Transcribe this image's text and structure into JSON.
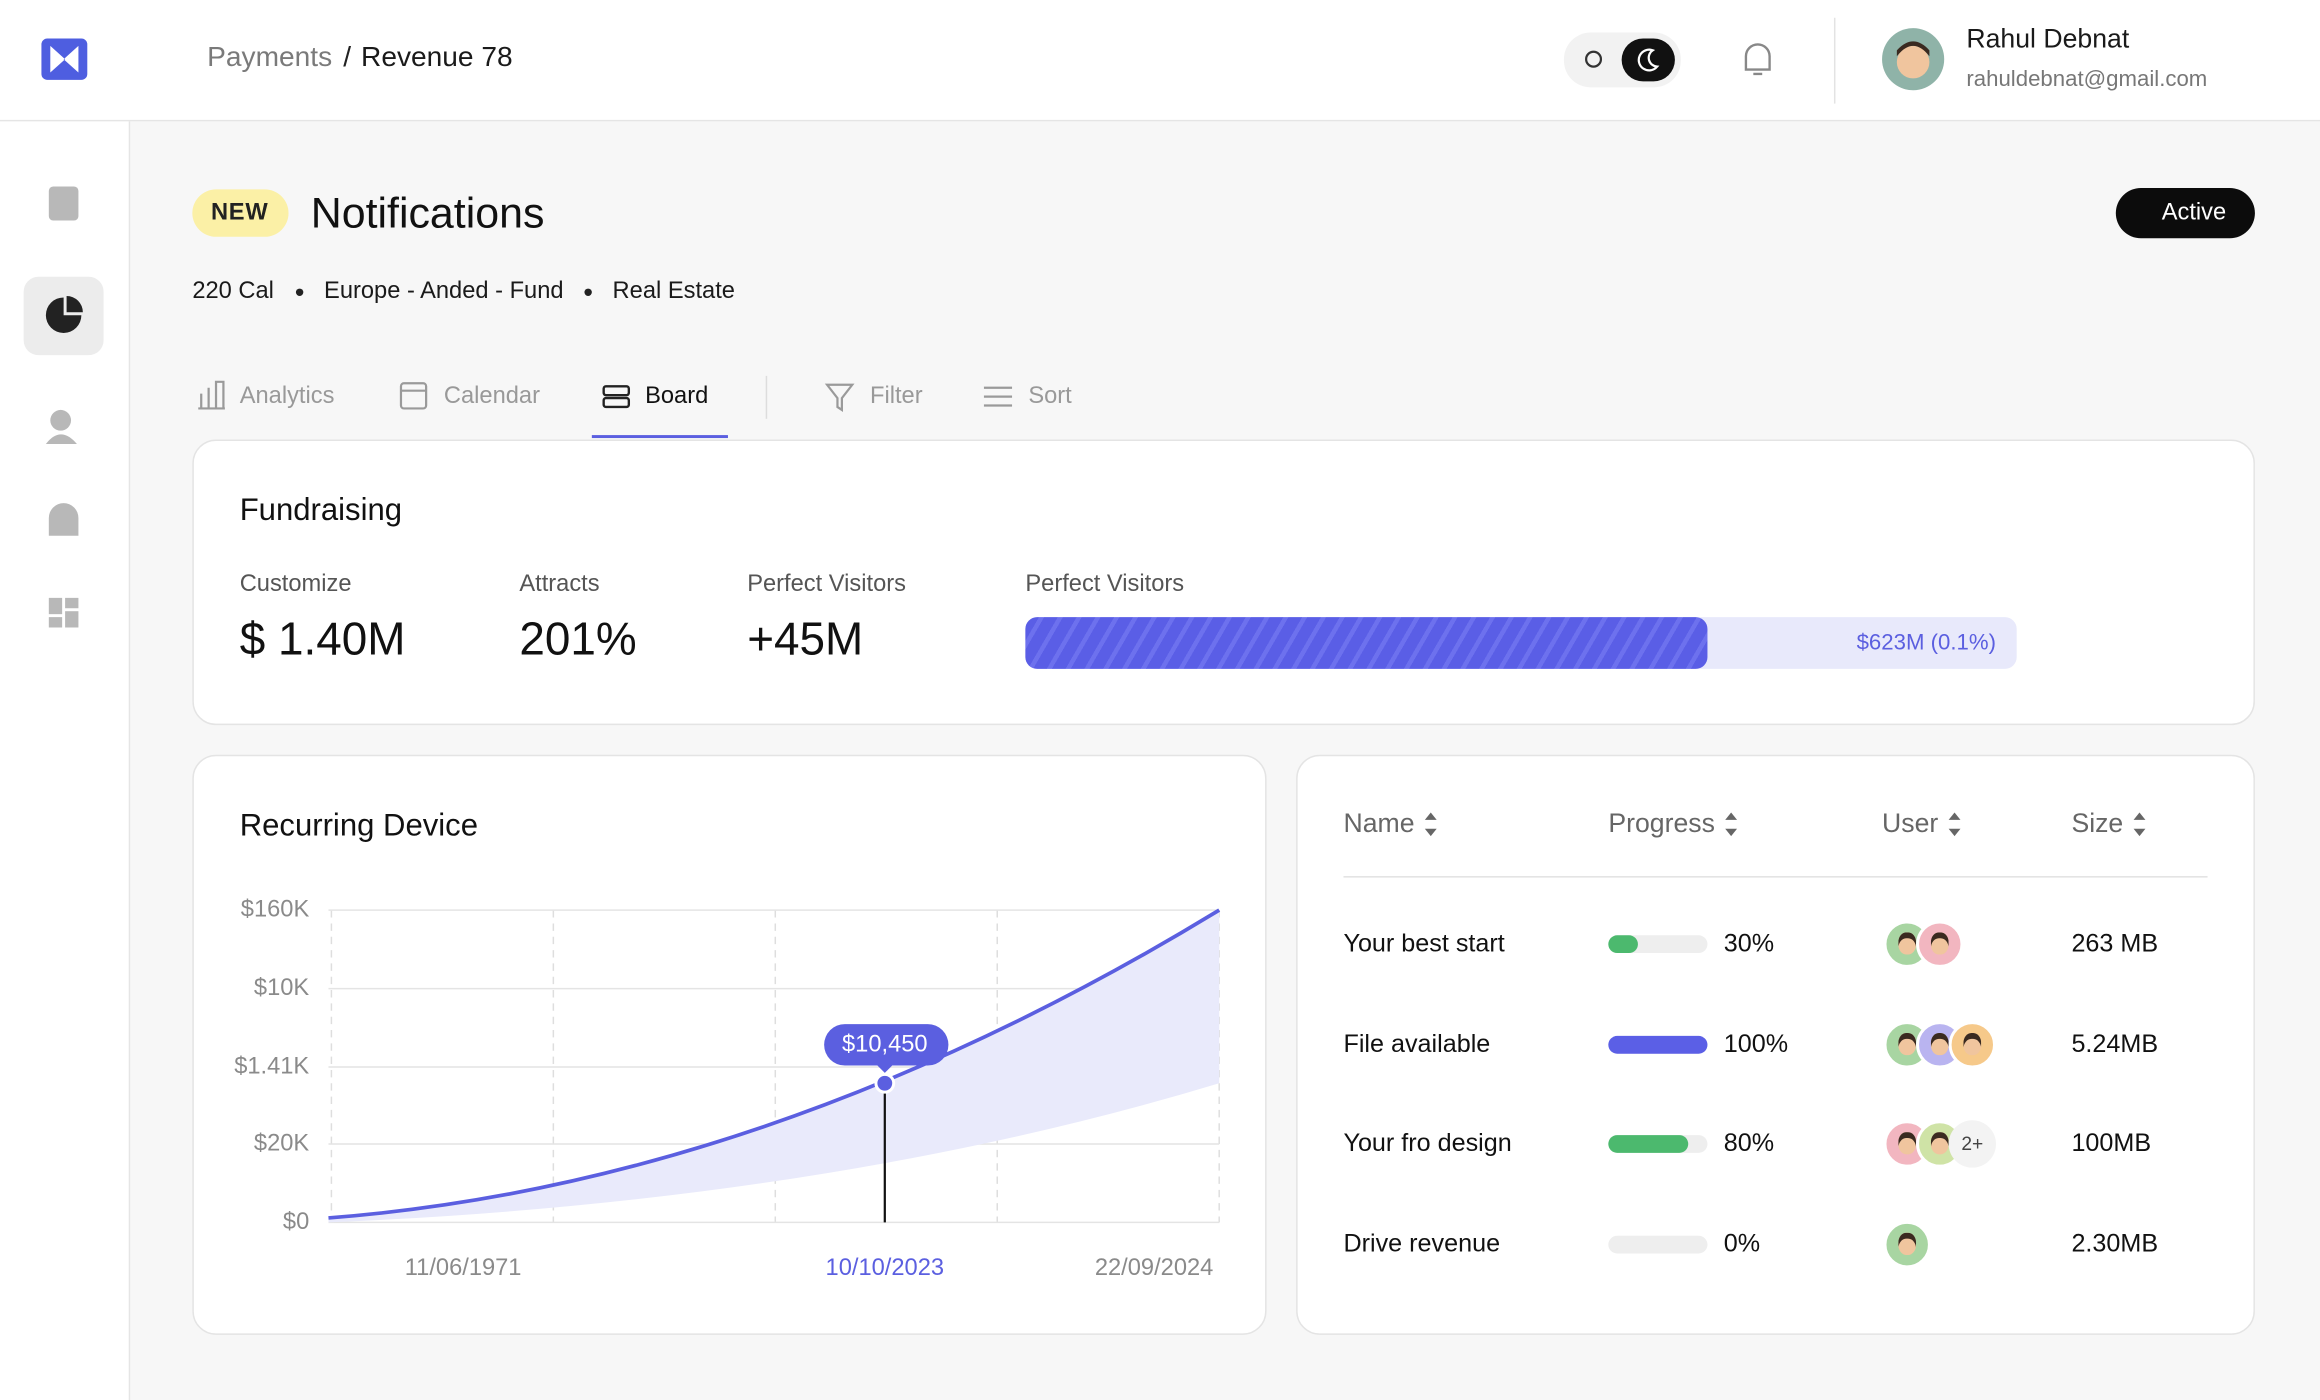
{
  "header": {
    "breadcrumb_parent": "Payments",
    "breadcrumb_separator": "/",
    "breadcrumb_current": "Revenue 78",
    "user_name": "Rahul Debnat",
    "user_email": "rahuldebnat@gmail.com"
  },
  "page": {
    "badge": "NEW",
    "title": "Notifications",
    "status": "Active",
    "meta": [
      "220 Cal",
      "Europe - Anded - Fund",
      "Real Estate"
    ]
  },
  "tabs": [
    "Analytics",
    "Calendar",
    "Board"
  ],
  "tools": [
    "Filter",
    "Sort"
  ],
  "fundraising": {
    "title": "Fundraising",
    "stats": [
      {
        "label": "Customize",
        "value": "$ 1.40M"
      },
      {
        "label": "Attracts",
        "value": "201%"
      },
      {
        "label": "Perfect Visitors",
        "value": "+45M"
      }
    ],
    "bar": {
      "label": "Perfect Visitors",
      "value_label": "$623M (0.1%)"
    }
  },
  "recurring": {
    "title": "Recurring Device",
    "y_labels": [
      "$160K",
      "$10K",
      "$1.41K",
      "$20K",
      "$0"
    ],
    "x_labels": [
      "11/06/1971",
      "10/10/2023",
      "22/09/2024"
    ],
    "tooltip": "$10,450"
  },
  "table": {
    "columns": [
      "Name",
      "Progress",
      "User",
      "Size"
    ],
    "rows": [
      {
        "name": "Your best start",
        "progress": 30,
        "progress_label": "30%",
        "size": "263 MB"
      },
      {
        "name": "File available",
        "progress": 100,
        "progress_label": "100%",
        "size": "5.24MB"
      },
      {
        "name": "Your fro design",
        "progress": 80,
        "progress_label": "80%",
        "more_users": "2+",
        "size": "100MB"
      },
      {
        "name": "Drive revenue",
        "progress": 0,
        "progress_label": "0%",
        "size": "2.30MB"
      }
    ]
  }
}
